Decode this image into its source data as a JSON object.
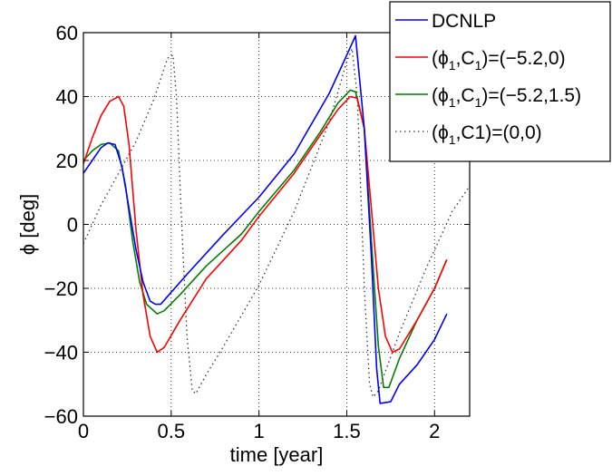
{
  "chart_data": {
    "type": "line",
    "title": "",
    "xlabel": "time [year]",
    "ylabel_symbol": "ϕ",
    "ylabel_unit": " [deg]",
    "xlim": [
      0,
      2.2
    ],
    "ylim": [
      -60,
      60
    ],
    "grid": true,
    "legend_position": "top-right",
    "x_ticks": [
      {
        "value": 0,
        "label": "0"
      },
      {
        "value": 0.5,
        "label": "0.5"
      },
      {
        "value": 1,
        "label": "1"
      },
      {
        "value": 1.5,
        "label": "1.5"
      },
      {
        "value": 2,
        "label": "2"
      }
    ],
    "y_ticks": [
      {
        "value": -60,
        "label": "−60"
      },
      {
        "value": -40,
        "label": "−40"
      },
      {
        "value": -20,
        "label": "−20"
      },
      {
        "value": 0,
        "label": "0"
      },
      {
        "value": 20,
        "label": "20"
      },
      {
        "value": 40,
        "label": "40"
      },
      {
        "value": 60,
        "label": "60"
      }
    ],
    "series": [
      {
        "name": "DCNLP",
        "legend_parts": [
          [
            "DCNLP",
            false
          ]
        ],
        "color": "#0000ff",
        "dash": "",
        "points": [
          [
            0,
            16
          ],
          [
            0.05,
            20
          ],
          [
            0.1,
            24
          ],
          [
            0.14,
            25.5
          ],
          [
            0.18,
            25
          ],
          [
            0.22,
            18
          ],
          [
            0.26,
            5
          ],
          [
            0.3,
            -8
          ],
          [
            0.34,
            -18
          ],
          [
            0.38,
            -24
          ],
          [
            0.41,
            -25
          ],
          [
            0.44,
            -25
          ],
          [
            0.48,
            -22.5
          ],
          [
            0.6,
            -15
          ],
          [
            0.8,
            -3
          ],
          [
            1.0,
            8.5
          ],
          [
            1.2,
            22
          ],
          [
            1.4,
            41
          ],
          [
            1.5,
            53
          ],
          [
            1.55,
            59
          ],
          [
            1.6,
            30
          ],
          [
            1.64,
            -10
          ],
          [
            1.67,
            -45
          ],
          [
            1.69,
            -56
          ],
          [
            1.75,
            -55.5
          ],
          [
            1.8,
            -50
          ],
          [
            1.9,
            -44
          ],
          [
            2.0,
            -36
          ],
          [
            2.07,
            -28
          ]
        ]
      },
      {
        "name": "(ϕ1,C1)=(−5.2,0)",
        "legend_parts": [
          [
            "(ϕ",
            false
          ],
          [
            "1",
            true
          ],
          [
            ",C",
            false
          ],
          [
            "1",
            true
          ],
          [
            ")=(−5.2,0)",
            false
          ]
        ],
        "color": "#ff0000",
        "dash": "",
        "points": [
          [
            0,
            19
          ],
          [
            0.05,
            27
          ],
          [
            0.1,
            34
          ],
          [
            0.15,
            38.5
          ],
          [
            0.2,
            40
          ],
          [
            0.23,
            37
          ],
          [
            0.26,
            25
          ],
          [
            0.3,
            -2
          ],
          [
            0.34,
            -22
          ],
          [
            0.38,
            -35
          ],
          [
            0.42,
            -40
          ],
          [
            0.46,
            -38.5
          ],
          [
            0.55,
            -30
          ],
          [
            0.7,
            -17
          ],
          [
            0.9,
            -5
          ],
          [
            1.0,
            2.5
          ],
          [
            1.2,
            16
          ],
          [
            1.35,
            28
          ],
          [
            1.45,
            36
          ],
          [
            1.52,
            40
          ],
          [
            1.56,
            39.5
          ],
          [
            1.6,
            30
          ],
          [
            1.64,
            5
          ],
          [
            1.68,
            -20
          ],
          [
            1.72,
            -35
          ],
          [
            1.76,
            -40
          ],
          [
            1.8,
            -39
          ],
          [
            1.9,
            -30
          ],
          [
            2.0,
            -20
          ],
          [
            2.07,
            -11
          ]
        ]
      },
      {
        "name": "(ϕ1,C1)=(−5.2,1.5)",
        "legend_parts": [
          [
            "(ϕ",
            false
          ],
          [
            "1",
            true
          ],
          [
            ",C",
            false
          ],
          [
            "1",
            true
          ],
          [
            ")=(−5.2,1.5)",
            false
          ]
        ],
        "color": "#008000",
        "dash": "",
        "points": [
          [
            0,
            20
          ],
          [
            0.05,
            23
          ],
          [
            0.1,
            25
          ],
          [
            0.15,
            25.5
          ],
          [
            0.2,
            23
          ],
          [
            0.24,
            12
          ],
          [
            0.28,
            -5
          ],
          [
            0.32,
            -18
          ],
          [
            0.36,
            -25
          ],
          [
            0.42,
            -28
          ],
          [
            0.46,
            -27
          ],
          [
            0.55,
            -22
          ],
          [
            0.7,
            -13
          ],
          [
            0.9,
            -3
          ],
          [
            1.0,
            4
          ],
          [
            1.2,
            17
          ],
          [
            1.35,
            29
          ],
          [
            1.45,
            38
          ],
          [
            1.52,
            42
          ],
          [
            1.55,
            41.5
          ],
          [
            1.6,
            30
          ],
          [
            1.64,
            -5
          ],
          [
            1.68,
            -38
          ],
          [
            1.71,
            -51
          ],
          [
            1.74,
            -51
          ],
          [
            1.8,
            -42
          ],
          [
            1.9,
            -30
          ],
          [
            2.0,
            -20
          ],
          [
            2.07,
            -11
          ]
        ]
      },
      {
        "name": "(ϕ1,C1)=(0,0)",
        "legend_parts": [
          [
            "(ϕ",
            false
          ],
          [
            "1",
            true
          ],
          [
            ",C1)=(0,0)",
            false
          ]
        ],
        "color": "#333333",
        "dash": "1.5,3.5",
        "points": [
          [
            0,
            -6
          ],
          [
            0.1,
            6
          ],
          [
            0.2,
            16
          ],
          [
            0.3,
            26
          ],
          [
            0.4,
            39
          ],
          [
            0.48,
            52
          ],
          [
            0.51,
            53
          ],
          [
            0.53,
            40
          ],
          [
            0.56,
            0
          ],
          [
            0.59,
            -35
          ],
          [
            0.62,
            -52
          ],
          [
            0.64,
            -53
          ],
          [
            0.7,
            -47
          ],
          [
            0.8,
            -38
          ],
          [
            1.0,
            -19
          ],
          [
            1.2,
            4
          ],
          [
            1.4,
            32
          ],
          [
            1.5,
            51
          ],
          [
            1.53,
            55
          ],
          [
            1.56,
            40
          ],
          [
            1.6,
            -20
          ],
          [
            1.63,
            -50
          ],
          [
            1.65,
            -54
          ],
          [
            1.68,
            -52
          ],
          [
            1.8,
            -34
          ],
          [
            1.95,
            -14
          ],
          [
            2.1,
            4
          ],
          [
            2.2,
            12
          ]
        ]
      }
    ]
  }
}
